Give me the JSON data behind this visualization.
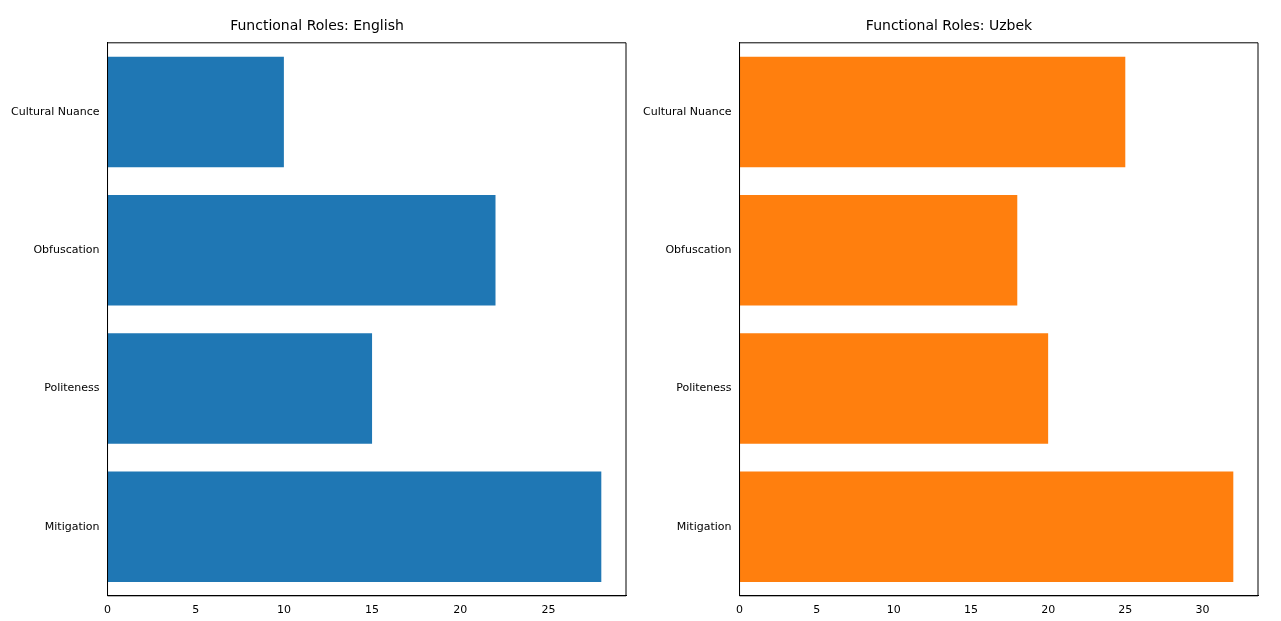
{
  "chart_data": [
    {
      "type": "bar",
      "orientation": "horizontal",
      "title": "Functional Roles: English",
      "categories": [
        "Cultural Nuance",
        "Obfuscation",
        "Politeness",
        "Mitigation"
      ],
      "values": [
        10,
        22,
        15,
        28
      ],
      "color": "#1f77b4",
      "xlim": [
        0,
        29.4
      ],
      "xticks": [
        0,
        5,
        10,
        15,
        20,
        25
      ],
      "grid": false,
      "legend": false
    },
    {
      "type": "bar",
      "orientation": "horizontal",
      "title": "Functional Roles: Uzbek",
      "categories": [
        "Cultural Nuance",
        "Obfuscation",
        "Politeness",
        "Mitigation"
      ],
      "values": [
        25,
        18,
        20,
        32
      ],
      "color": "#ff7f0e",
      "xlim": [
        0,
        33.6
      ],
      "xticks": [
        0,
        5,
        10,
        15,
        20,
        25,
        30
      ],
      "grid": false,
      "legend": false
    }
  ]
}
